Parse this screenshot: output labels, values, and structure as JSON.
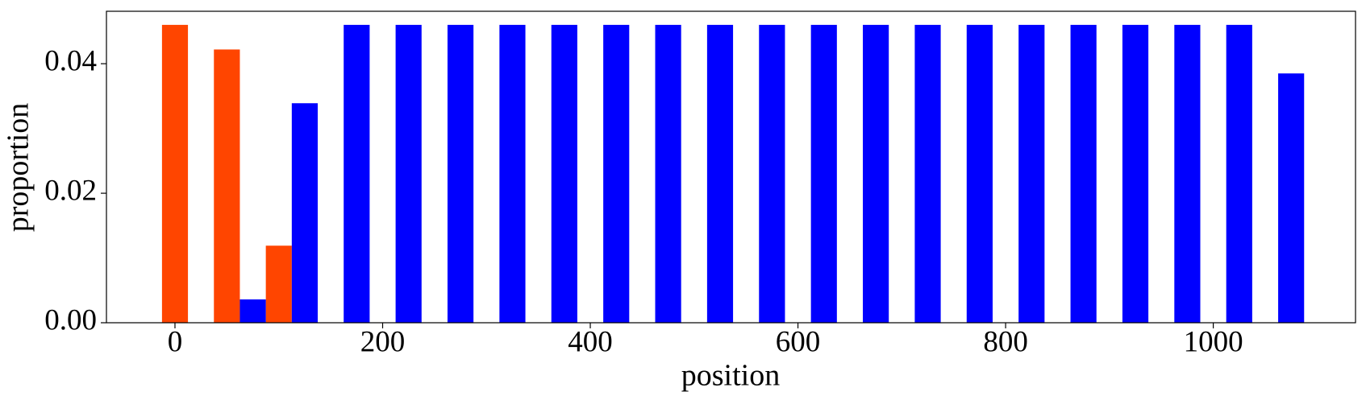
{
  "chart_data": {
    "type": "bar",
    "x_label": "position",
    "y_label": "proportion",
    "xlim": [
      -66,
      1137
    ],
    "ylim": [
      0,
      0.0481
    ],
    "xticks": [
      0,
      200,
      400,
      600,
      800,
      1000
    ],
    "yticks": [
      {
        "value": 0,
        "label": "0.00"
      },
      {
        "value": 0.02,
        "label": "0.02"
      },
      {
        "value": 0.04,
        "label": "0.04"
      }
    ],
    "grid": false,
    "series": [
      {
        "color": "#ff4500",
        "x": [
          0,
          50,
          100
        ],
        "values": [
          0.046,
          0.0422,
          0.0119
        ]
      },
      {
        "color": "#0000ff",
        "x": [
          75,
          125,
          175,
          225,
          275,
          325,
          375,
          425,
          475,
          525,
          575,
          625,
          675,
          725,
          775,
          825,
          875,
          925,
          975,
          1025,
          1075
        ],
        "values": [
          0.0036,
          0.0339,
          0.046,
          0.046,
          0.046,
          0.046,
          0.046,
          0.046,
          0.046,
          0.046,
          0.046,
          0.046,
          0.046,
          0.046,
          0.046,
          0.046,
          0.046,
          0.046,
          0.046,
          0.046,
          0.0385
        ]
      }
    ]
  }
}
